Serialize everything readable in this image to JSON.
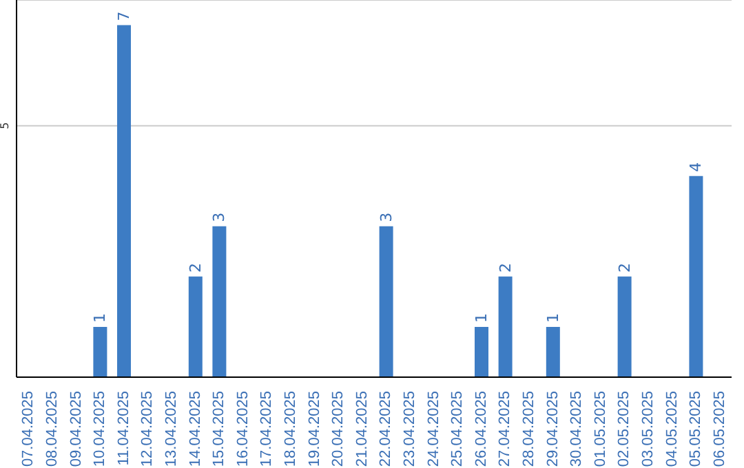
{
  "chart_data": {
    "type": "bar",
    "categories": [
      "07.04.2025",
      "08.04.2025",
      "09.04.2025",
      "10.04.2025",
      "11.04.2025",
      "12.04.2025",
      "13.04.2025",
      "14.04.2025",
      "15.04.2025",
      "16.04.2025",
      "17.04.2025",
      "18.04.2025",
      "19.04.2025",
      "20.04.2025",
      "21.04.2025",
      "22.04.2025",
      "23.04.2025",
      "24.04.2025",
      "25.04.2025",
      "26.04.2025",
      "27.04.2025",
      "28.04.2025",
      "29.04.2025",
      "30.04.2025",
      "01.05.2025",
      "02.05.2025",
      "03.05.2025",
      "04.05.2025",
      "05.05.2025",
      "06.05.2025"
    ],
    "values": [
      0,
      0,
      0,
      1,
      7,
      0,
      0,
      2,
      3,
      0,
      0,
      0,
      0,
      0,
      0,
      3,
      0,
      0,
      0,
      1,
      2,
      0,
      1,
      0,
      0,
      2,
      0,
      0,
      4,
      0
    ],
    "value_labels": [
      null,
      null,
      null,
      "1",
      "7",
      null,
      null,
      "2",
      "3",
      null,
      null,
      null,
      null,
      null,
      null,
      "3",
      null,
      null,
      null,
      "1",
      "2",
      null,
      "1",
      null,
      null,
      "2",
      null,
      null,
      "4",
      null
    ],
    "color": "#3d7cc4",
    "ylim": [
      0,
      7.5
    ],
    "yticks": [
      5
    ],
    "grid": "y"
  }
}
